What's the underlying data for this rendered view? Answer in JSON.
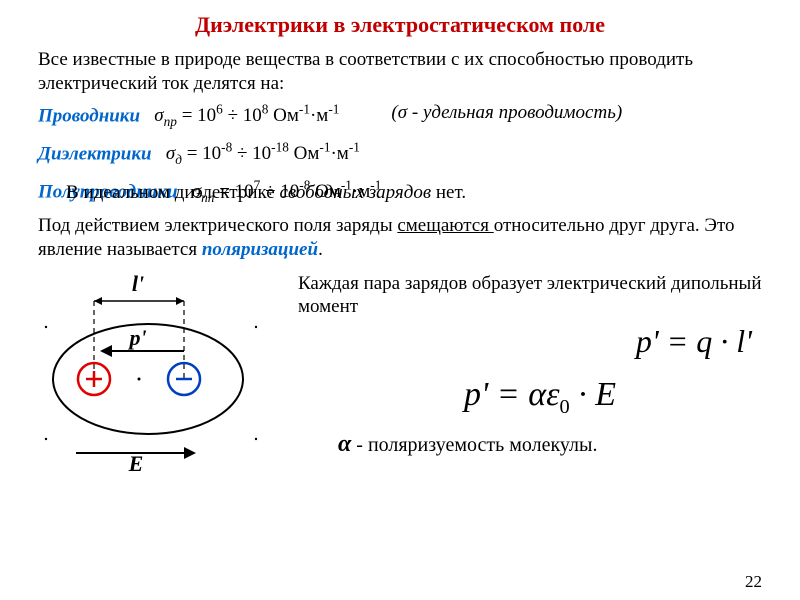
{
  "title": "Диэлектрики в электростатическом поле",
  "intro": "Все известные в природе вещества в соответствии с их способностью проводить электрический ток делятся на:",
  "conductors": {
    "label": "Проводники",
    "formula_html": "<span class='italic'>σ<sub>пр</sub></span> = 10<sup>6</sup> ÷ 10<sup>8</sup> Ом<sup>-1</sup>·м<sup>-1</sup>",
    "note_html": "(<span class='italic'>σ</span> - удельная проводимость)"
  },
  "dielectrics": {
    "label": "Диэлектрики",
    "formula_html": "<span class='italic'>σ<sub>д</sub></span> = 10<sup>-8</sup> ÷ 10<sup>-18</sup> Ом<sup>-1</sup>·м<sup>-1</sup>"
  },
  "semicond": {
    "label": "Полупроводники",
    "formula_html": "<span class='italic'>σ<sub>пп</sub></span> = 10<sup>7</sup> ÷ 10<sup>-8</sup> Ом<sup>-1</sup>·м<sup>-1</sup>"
  },
  "ideal_line": "В идеальном диэлектрике <span class='italic'>свободных зарядов</span> нет.",
  "polarization_html": "Под действием электрического поля заряды <span class='underline'>смещаются </span>относительно друг друга. Это явление называется <span class='blue-italic'>поляризацией</span>.",
  "pair_text": "Каждая пара зарядов образует электрический дипольный момент",
  "formula_pql": "p' = q · l'",
  "formula_main": "p' = αε<sub style='font-style:normal;font-size:0.6em'>0</sub> · E",
  "alpha_note_html": "<span class='alpha'>α</span> - поляризуемость молекулы.",
  "diagram": {
    "l_label": "l'",
    "p_label": "p'",
    "e_label": "E",
    "ellipse_stroke": "#000000",
    "bg": "#ffffff",
    "plus_color": "#e00000",
    "minus_color": "#0040c0"
  },
  "page_num": "22",
  "colors": {
    "title": "#c00000",
    "blue": "#0066cc",
    "text": "#000000"
  }
}
